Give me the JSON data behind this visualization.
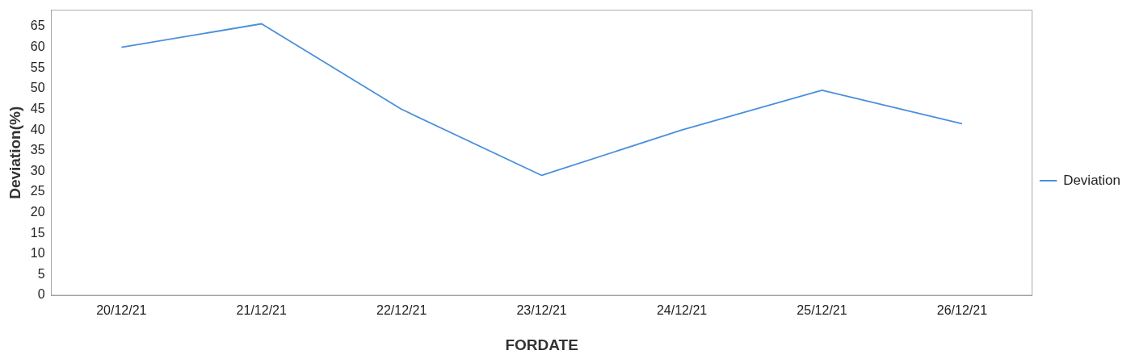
{
  "chart_data": {
    "type": "line",
    "xlabel": "FORDATE",
    "ylabel": "Deviation(%)",
    "categories": [
      "20/12/21",
      "21/12/21",
      "22/12/21",
      "23/12/21",
      "24/12/21",
      "25/12/21",
      "26/12/21"
    ],
    "series": [
      {
        "name": "Deviation",
        "color": "#4a8fdc",
        "values": [
          60,
          65.7,
          45,
          29,
          40,
          49.6,
          41.5
        ]
      }
    ],
    "ylim": [
      0,
      69
    ],
    "yticks": [
      0,
      5,
      10,
      15,
      20,
      25,
      30,
      35,
      40,
      45,
      50,
      55,
      60,
      65
    ],
    "legend": "right",
    "marker": "none",
    "line_style": "solid",
    "grid": false
  }
}
